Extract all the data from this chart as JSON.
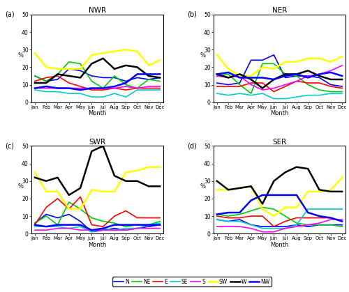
{
  "months": [
    "Jan",
    "Feb",
    "Mar",
    "Apr",
    "May",
    "Jun",
    "Jul",
    "Aug",
    "Sep",
    "Oct",
    "Nov",
    "Dec"
  ],
  "titles": [
    "NWR",
    "NER",
    "SWR",
    "SER"
  ],
  "panel_labels": [
    "(a)",
    "(b)",
    "(c)",
    "(d)"
  ],
  "directions": [
    "N",
    "NE",
    "E",
    "SE",
    "S",
    "SW",
    "W",
    "NW"
  ],
  "colors": {
    "N": "#0000ff",
    "NE": "#00bb00",
    "E": "#ff0000",
    "SE": "#00cccc",
    "S": "#ff00ff",
    "SW": "#ffff00",
    "W": "#000000",
    "NW": "#0000ff"
  },
  "line_styles": {
    "N": "-",
    "NE": "-",
    "E": "-",
    "SE": "-",
    "S": "-",
    "SW": "-",
    "W": "-",
    "NW": "-"
  },
  "data": {
    "NWR": {
      "N": [
        15,
        12,
        13,
        19,
        18,
        15,
        14,
        14,
        12,
        14,
        13,
        14
      ],
      "NE": [
        15,
        12,
        16,
        23,
        22,
        12,
        8,
        15,
        10,
        8,
        13,
        12
      ],
      "E": [
        12,
        14,
        15,
        11,
        9,
        7,
        7,
        8,
        7,
        8,
        8,
        8
      ],
      "SE": [
        7,
        6,
        6,
        5,
        5,
        3,
        3,
        5,
        3,
        7,
        7,
        7
      ],
      "S": [
        8,
        8,
        8,
        8,
        8,
        8,
        8,
        8,
        9,
        8,
        9,
        9
      ],
      "SW": [
        28,
        20,
        19,
        19,
        19,
        27,
        28,
        29,
        30,
        29,
        21,
        24
      ],
      "W": [
        11,
        11,
        16,
        15,
        14,
        22,
        25,
        19,
        21,
        20,
        15,
        14
      ],
      "NW": [
        8,
        9,
        8,
        8,
        7,
        8,
        8,
        9,
        11,
        16,
        16,
        16
      ]
    },
    "NER": {
      "N": [
        11,
        10,
        11,
        24,
        24,
        27,
        14,
        15,
        15,
        14,
        10,
        9
      ],
      "NE": [
        15,
        16,
        10,
        5,
        22,
        22,
        16,
        15,
        10,
        7,
        6,
        6
      ],
      "E": [
        9,
        9,
        9,
        11,
        11,
        6,
        9,
        12,
        11,
        11,
        9,
        8
      ],
      "SE": [
        5,
        4,
        5,
        4,
        5,
        2,
        2,
        3,
        4,
        4,
        5,
        5
      ],
      "S": [
        15,
        14,
        15,
        10,
        7,
        8,
        10,
        12,
        15,
        16,
        18,
        21
      ],
      "SW": [
        27,
        19,
        15,
        15,
        20,
        19,
        23,
        23,
        25,
        25,
        23,
        26
      ],
      "W": [
        16,
        14,
        16,
        13,
        8,
        13,
        16,
        16,
        18,
        15,
        13,
        13
      ],
      "NW": [
        16,
        17,
        14,
        14,
        14,
        13,
        15,
        16,
        14,
        16,
        17,
        15
      ]
    },
    "SWR": {
      "N": [
        6,
        11,
        9,
        11,
        7,
        1,
        2,
        3,
        2,
        3,
        4,
        5
      ],
      "NE": [
        6,
        10,
        5,
        18,
        14,
        9,
        7,
        6,
        4,
        5,
        5,
        7
      ],
      "E": [
        5,
        15,
        20,
        14,
        21,
        5,
        4,
        10,
        13,
        9,
        9,
        9
      ],
      "SE": [
        4,
        4,
        4,
        3,
        4,
        1,
        3,
        2,
        3,
        3,
        5,
        6
      ],
      "S": [
        2,
        2,
        3,
        3,
        2,
        2,
        2,
        2,
        2,
        3,
        3,
        3
      ],
      "SW": [
        35,
        24,
        24,
        14,
        14,
        25,
        24,
        24,
        35,
        36,
        38,
        38
      ],
      "W": [
        32,
        30,
        32,
        22,
        26,
        47,
        50,
        33,
        30,
        30,
        27,
        27
      ],
      "NW": [
        5,
        4,
        5,
        5,
        5,
        2,
        3,
        5,
        5,
        5,
        5,
        5
      ]
    },
    "SER": {
      "N": [
        8,
        7,
        8,
        5,
        4,
        4,
        4,
        5,
        4,
        5,
        5,
        5
      ],
      "NE": [
        11,
        10,
        11,
        13,
        15,
        14,
        10,
        6,
        5,
        5,
        5,
        4
      ],
      "E": [
        10,
        9,
        9,
        10,
        10,
        4,
        7,
        9,
        9,
        9,
        9,
        7
      ],
      "SE": [
        8,
        7,
        7,
        5,
        3,
        3,
        3,
        5,
        14,
        14,
        14,
        14
      ],
      "S": [
        4,
        4,
        4,
        3,
        1,
        1,
        3,
        4,
        5,
        6,
        8,
        8
      ],
      "SW": [
        25,
        25,
        26,
        27,
        14,
        10,
        15,
        15,
        24,
        24,
        25,
        32
      ],
      "W": [
        30,
        25,
        26,
        27,
        17,
        30,
        35,
        38,
        37,
        25,
        24,
        24
      ],
      "NW": [
        11,
        12,
        12,
        19,
        22,
        22,
        22,
        22,
        12,
        10,
        9,
        7
      ]
    }
  }
}
